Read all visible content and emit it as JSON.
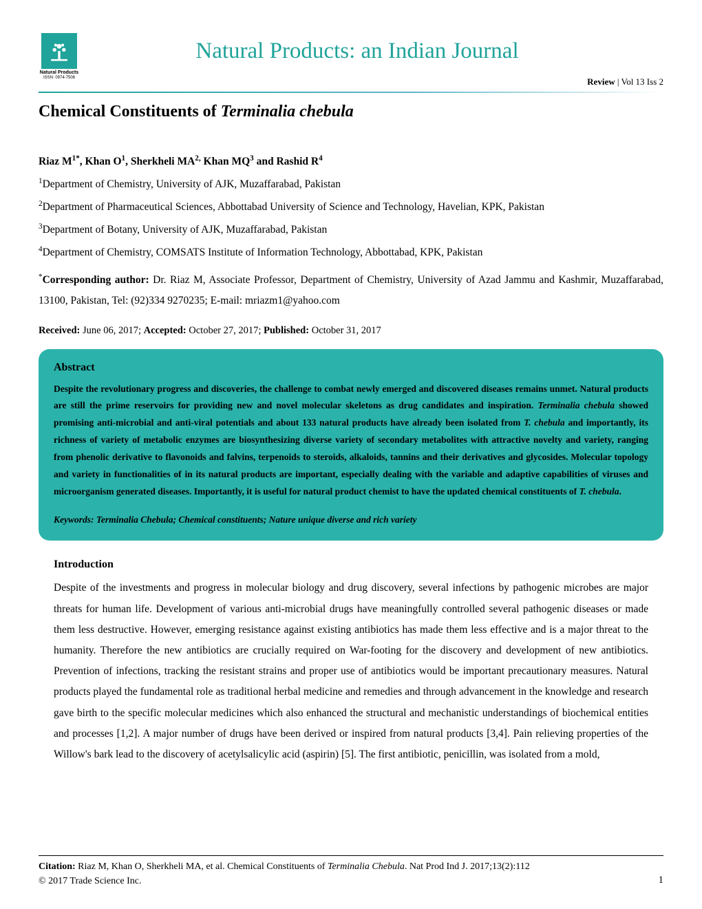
{
  "journal": {
    "title": "Natural Products: an Indian Journal",
    "logo_caption": "Natural Products",
    "logo_issn": "ISSN: 0974-7508",
    "review_label": "Review",
    "issue": " | Vol 13 Iss 2",
    "title_color": "#1fa39a",
    "logo_bg": "#1fa39a"
  },
  "article": {
    "title_prefix": "Chemical Constituents of ",
    "title_italic": "Terminalia chebula",
    "authors_html": "Riaz M<sup>1*</sup>, Khan O<sup>1</sup>, Sherkheli MA<sup>2,</sup> Khan MQ<sup>3</sup> and Rashid R<sup>4</sup>",
    "affiliations": [
      "<sup>1</sup>Department of Chemistry, University of AJK, Muzaffarabad, Pakistan",
      "<sup>2</sup>Department of Pharmaceutical Sciences, Abbottabad University of Science and Technology, Havelian, KPK, Pakistan",
      "<sup>3</sup>Department of Botany, University of AJK, Muzaffarabad, Pakistan",
      "<sup>4</sup>Department of Chemistry, COMSATS Institute of Information Technology, Abbottabad, KPK, Pakistan"
    ],
    "corresponding": "<sup>*</sup><b>Corresponding author:</b> Dr. Riaz M, Associate Professor, Department of Chemistry, University of Azad Jammu and Kashmir, Muzaffarabad, 13100, Pakistan, Tel: (92)334 9270235; E-mail: mriazm1@yahoo.com",
    "dates": "<b>Received:</b> June 06, 2017; <b>Accepted:</b> October 27, 2017; <b>Published:</b> October 31, 2017"
  },
  "abstract": {
    "heading": "Abstract",
    "text": "Despite the revolutionary progress and discoveries, the challenge to combat newly emerged and discovered diseases remains unmet. Natural products are still the prime reservoirs for providing new and novel molecular skeletons as drug candidates and inspiration. <span class=\"ital\">Terminalia chebula</span> showed promising anti-microbial and anti-viral potentials and about 133 natural products have already been isolated from <span class=\"ital\">T. chebula</span> and importantly, its richness of variety of metabolic enzymes are biosynthesizing diverse variety of secondary metabolites with attractive novelty and variety, ranging from phenolic derivative to flavonoids and falvins, terpenoids to steroids, alkaloids, tannins and their derivatives and glycosides. Molecular topology and variety in functionalities of in its natural products are important, especially dealing with the variable and adaptive capabilities of viruses and microorganism generated diseases. Importantly, it is useful for natural product chemist to have the updated chemical constituents of <span class=\"ital\">T. chebula</span>.",
    "keywords": "Keywords: Terminalia Chebula; Chemical constituents; Nature unique diverse and rich variety",
    "bg_color": "#2bb3ab"
  },
  "introduction": {
    "heading": "Introduction",
    "text": "Despite of the investments and progress in molecular biology and drug discovery, several infections by pathogenic microbes are major threats for human life. Development of various anti-microbial drugs have meaningfully controlled several pathogenic diseases or made them less destructive. However, emerging resistance against existing antibiotics has made them less effective and is a major threat to the humanity. Therefore the new antibiotics are crucially required on War-footing for the discovery and development of new antibiotics. Prevention of infections, tracking the resistant strains and proper use of antibiotics would be important precautionary measures. Natural products played the fundamental role as traditional herbal medicine and remedies and through advancement in the knowledge and research gave birth to the specific molecular medicines which also enhanced the structural and mechanistic understandings of biochemical entities and processes [1,2]. A major number of drugs have been derived or inspired from natural products [3,4]. Pain relieving properties of the Willow's bark lead to the discovery of acetylsalicylic acid (aspirin) [5]. The first antibiotic, penicillin, was isolated from a mold,"
  },
  "footer": {
    "citation": "<b>Citation:</b> Riaz M, Khan O, Sherkheli MA, et al. Chemical Constituents of <span class=\"ital\">Terminalia Chebula</span>. Nat Prod Ind J. 2017;13(2):112",
    "copyright": "© 2017 Trade Science Inc.",
    "page": "1"
  }
}
